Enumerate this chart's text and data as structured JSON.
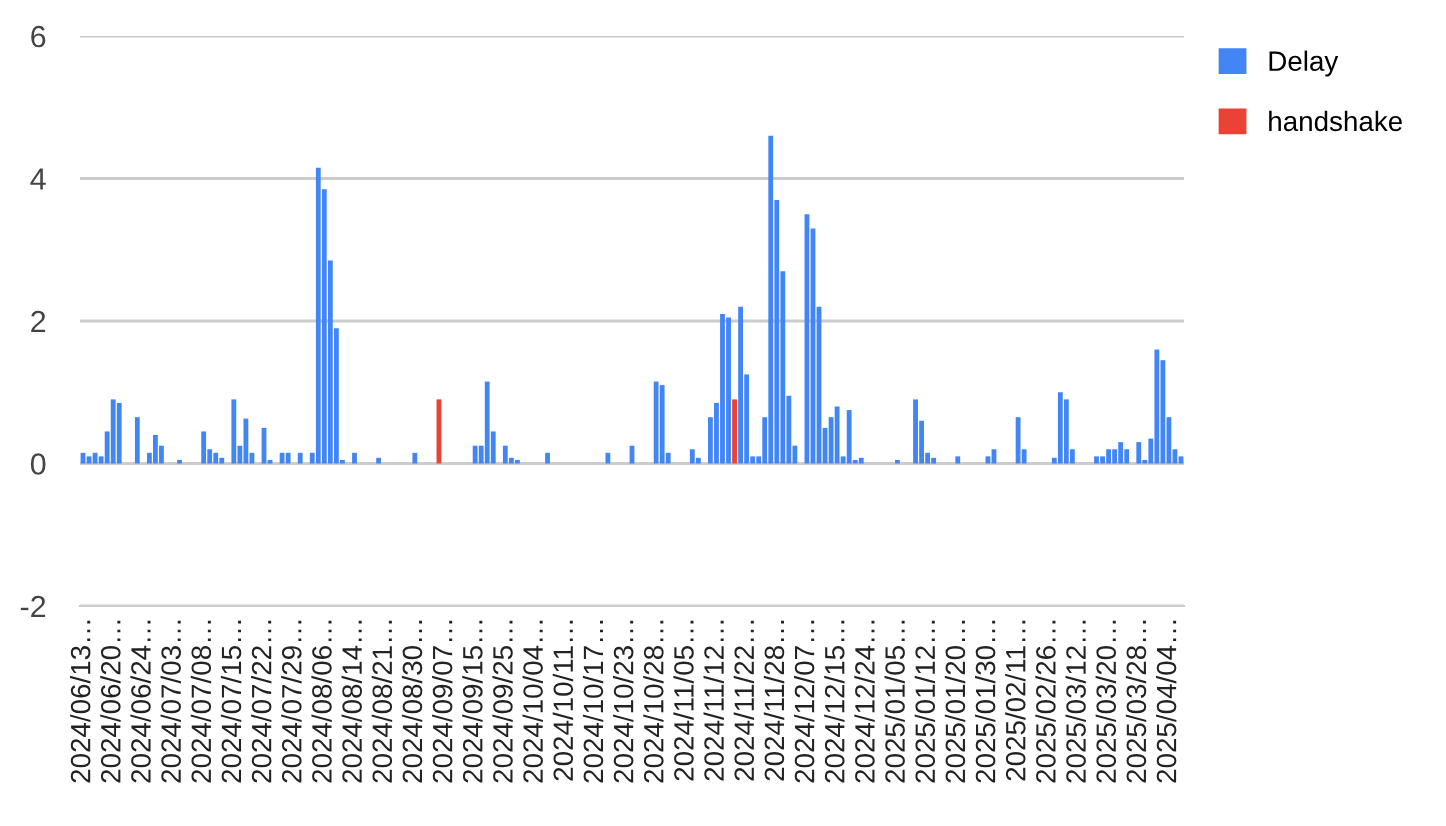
{
  "chart_data": {
    "type": "bar",
    "stacked": true,
    "categories": [
      "2024/06/13…",
      null,
      null,
      null,
      null,
      "2024/06/20…",
      null,
      null,
      null,
      null,
      "2024/06/24…",
      null,
      null,
      null,
      null,
      "2024/07/03…",
      null,
      null,
      null,
      null,
      "2024/07/08…",
      null,
      null,
      null,
      null,
      "2024/07/15…",
      null,
      null,
      null,
      null,
      "2024/07/22…",
      null,
      null,
      null,
      null,
      "2024/07/29…",
      null,
      null,
      null,
      null,
      "2024/08/06…",
      null,
      null,
      null,
      null,
      "2024/08/14…",
      null,
      null,
      null,
      null,
      "2024/08/21…",
      null,
      null,
      null,
      null,
      "2024/08/30…",
      null,
      null,
      null,
      null,
      "2024/09/07…",
      null,
      null,
      null,
      null,
      "2024/09/15…",
      null,
      null,
      null,
      null,
      "2024/09/25…",
      null,
      null,
      null,
      null,
      "2024/10/04…",
      null,
      null,
      null,
      null,
      "2024/10/11…",
      null,
      null,
      null,
      null,
      "2024/10/17…",
      null,
      null,
      null,
      null,
      "2024/10/23…",
      null,
      null,
      null,
      null,
      "2024/10/28…",
      null,
      null,
      null,
      null,
      "2024/11/05…",
      null,
      null,
      null,
      null,
      "2024/11/12…",
      null,
      null,
      null,
      null,
      "2024/11/22…",
      null,
      null,
      null,
      null,
      "2024/11/28…",
      null,
      null,
      null,
      null,
      "2024/12/07…",
      null,
      null,
      null,
      null,
      "2024/12/15…",
      null,
      null,
      null,
      null,
      "2024/12/24…",
      null,
      null,
      null,
      null,
      "2025/01/05…",
      null,
      null,
      null,
      null,
      "2025/01/12…",
      null,
      null,
      null,
      null,
      "2025/01/20…",
      null,
      null,
      null,
      null,
      "2025/01/30…",
      null,
      null,
      null,
      null,
      "2025/02/11…",
      null,
      null,
      null,
      null,
      "2025/02/26…",
      null,
      null,
      null,
      null,
      "2025/03/12…",
      null,
      null,
      null,
      null,
      "2025/03/20…",
      null,
      null,
      null,
      null,
      "2025/03/28…",
      null,
      null,
      null,
      null,
      "2025/04/04…",
      null,
      null
    ],
    "series": [
      {
        "name": "Delay",
        "color": "#4285f4",
        "values": [
          0.15,
          0.1,
          0.15,
          0.1,
          0.45,
          0.9,
          0.85,
          0,
          0,
          0.65,
          0,
          0.15,
          0.4,
          0.25,
          0,
          0,
          0.05,
          0,
          0,
          0,
          0.45,
          0.2,
          0.15,
          0.08,
          0,
          0.9,
          0.25,
          0.63,
          0.15,
          0,
          0.5,
          0.05,
          0,
          0.15,
          0.15,
          0,
          0.15,
          0,
          0.15,
          4.15,
          3.85,
          2.85,
          1.9,
          0.05,
          0,
          0.15,
          0,
          0,
          0,
          0.08,
          0,
          0,
          0,
          0,
          0,
          0.15,
          0,
          0,
          0,
          0,
          0,
          0,
          0,
          0,
          0,
          0.25,
          0.25,
          1.15,
          0.45,
          0,
          0.25,
          0.08,
          0.05,
          0,
          0,
          0,
          0,
          0.15,
          0,
          0,
          0,
          0,
          0,
          0,
          0,
          0,
          0,
          0.15,
          0,
          0,
          0,
          0.25,
          0,
          0,
          0,
          1.15,
          1.1,
          0.15,
          0,
          0,
          0,
          0.2,
          0.08,
          0,
          0.65,
          0.85,
          2.1,
          2.05,
          0,
          2.2,
          1.25,
          0.1,
          0.1,
          0.65,
          4.6,
          3.7,
          2.7,
          0.95,
          0.25,
          0,
          3.5,
          3.3,
          2.2,
          0.5,
          0.65,
          0.8,
          0.1,
          0.75,
          0.05,
          0.08,
          0,
          0,
          0,
          0,
          0,
          0.05,
          0,
          0,
          0.9,
          0.6,
          0.15,
          0.08,
          0,
          0,
          0,
          0.1,
          0,
          0,
          0,
          0,
          0.1,
          0.2,
          0,
          0,
          0,
          0.65,
          0.2,
          0,
          0,
          0,
          0,
          0.08,
          1.0,
          0.9,
          0.2,
          0,
          0,
          0,
          0.1,
          0.1,
          0.2,
          0.2,
          0.3,
          0.2,
          0,
          0.3,
          0.05,
          0.35,
          1.6,
          1.45,
          0.65,
          0.2,
          0.1
        ]
      },
      {
        "name": "handshake",
        "color": "#ea4335",
        "values": [
          0,
          0,
          0,
          0,
          0,
          0,
          0,
          0,
          0,
          0,
          0,
          0,
          0,
          0,
          0,
          0,
          0,
          0,
          0,
          0,
          0,
          0,
          0,
          0,
          0,
          0,
          0,
          0,
          0,
          0,
          0,
          0,
          0,
          0,
          0,
          0,
          0,
          0,
          0,
          0,
          0,
          0,
          0,
          0,
          0,
          0,
          0,
          0,
          0,
          0,
          0,
          0,
          0,
          0,
          0,
          0,
          0,
          0,
          0,
          0.9,
          0,
          0,
          0,
          0,
          0,
          0,
          0,
          0,
          0,
          0,
          0,
          0,
          0,
          0,
          0,
          0,
          0,
          0,
          0,
          0,
          0,
          0,
          0,
          0,
          0,
          0,
          0,
          0,
          0,
          0,
          0,
          0,
          0,
          0,
          0,
          0,
          0,
          0,
          0,
          0,
          0,
          0,
          0,
          0,
          0,
          0,
          0,
          0,
          0.9,
          0,
          0,
          0,
          0,
          0,
          0,
          0,
          0,
          0,
          0,
          0,
          0,
          0,
          0,
          0,
          0,
          0,
          0,
          0,
          0,
          0,
          0,
          0,
          0,
          0,
          0,
          0,
          0,
          0,
          0,
          0,
          0,
          0,
          0,
          0,
          0,
          0,
          0,
          0,
          0,
          0,
          0,
          0,
          0,
          0,
          0,
          0,
          0,
          0,
          0,
          0,
          0,
          0,
          0,
          0,
          0,
          0,
          0,
          0,
          0,
          0,
          0,
          0,
          0,
          0,
          0,
          0,
          0,
          0,
          0,
          0,
          0,
          0,
          0
        ]
      }
    ],
    "ylim": [
      -2,
      6
    ],
    "yticks": [
      -2,
      0,
      2,
      4,
      6
    ],
    "grid": "y",
    "legend": "top right"
  }
}
